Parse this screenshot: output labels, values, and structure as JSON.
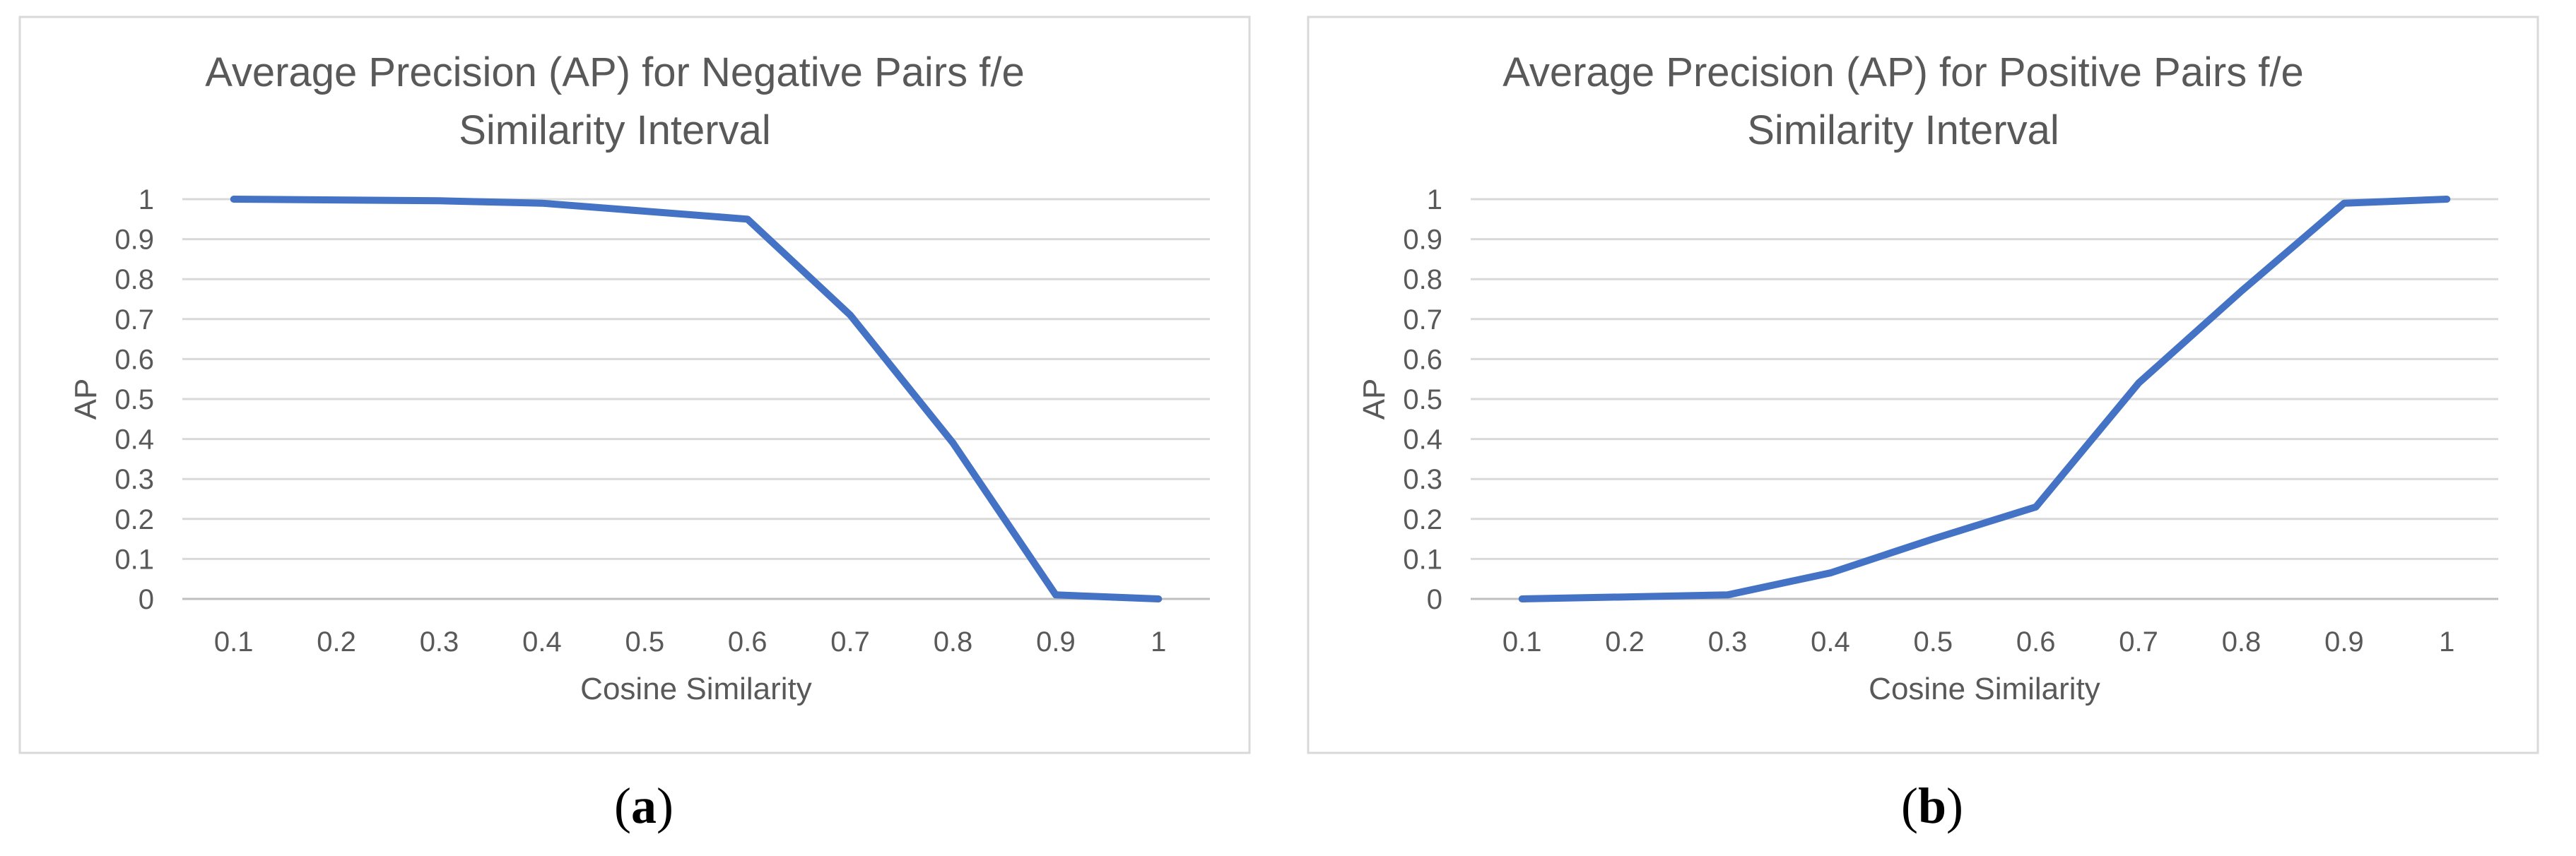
{
  "chart_data": [
    {
      "type": "line",
      "title_lines": [
        "Average Precision (AP) for Negative Pairs f/e",
        "Similarity Interval"
      ],
      "xlabel": "Cosine Similarity",
      "ylabel": "AP",
      "x": [
        0.1,
        0.2,
        0.3,
        0.4,
        0.5,
        0.6,
        0.7,
        0.8,
        0.9,
        1
      ],
      "x_tick_labels": [
        "0.1",
        "0.2",
        "0.3",
        "0.4",
        "0.5",
        "0.6",
        "0.7",
        "0.8",
        "0.9",
        "1"
      ],
      "y_tick_labels": [
        "0",
        "0.1",
        "0.2",
        "0.3",
        "0.4",
        "0.5",
        "0.6",
        "0.7",
        "0.8",
        "0.9",
        "1"
      ],
      "ylim": [
        0,
        1
      ],
      "grid": true,
      "series": [
        {
          "values": [
            1.0,
            0.998,
            0.996,
            0.99,
            0.97,
            0.95,
            0.71,
            0.39,
            0.01,
            0.0
          ]
        }
      ],
      "line_color": "#4472C4",
      "caption_letter": "a"
    },
    {
      "type": "line",
      "title_lines": [
        "Average Precision (AP) for Positive Pairs f/e",
        "Similarity Interval"
      ],
      "xlabel": "Cosine Similarity",
      "ylabel": "AP",
      "x": [
        0.1,
        0.2,
        0.3,
        0.4,
        0.5,
        0.6,
        0.7,
        0.8,
        0.9,
        1
      ],
      "x_tick_labels": [
        "0.1",
        "0.2",
        "0.3",
        "0.4",
        "0.5",
        "0.6",
        "0.7",
        "0.8",
        "0.9",
        "1"
      ],
      "y_tick_labels": [
        "0",
        "0.1",
        "0.2",
        "0.3",
        "0.4",
        "0.5",
        "0.6",
        "0.7",
        "0.8",
        "0.9",
        "1"
      ],
      "ylim": [
        0,
        1
      ],
      "grid": true,
      "series": [
        {
          "values": [
            0.0,
            0.005,
            0.01,
            0.065,
            0.15,
            0.23,
            0.54,
            0.77,
            0.99,
            1.0
          ]
        }
      ],
      "line_color": "#4472C4",
      "caption_letter": "b"
    }
  ]
}
